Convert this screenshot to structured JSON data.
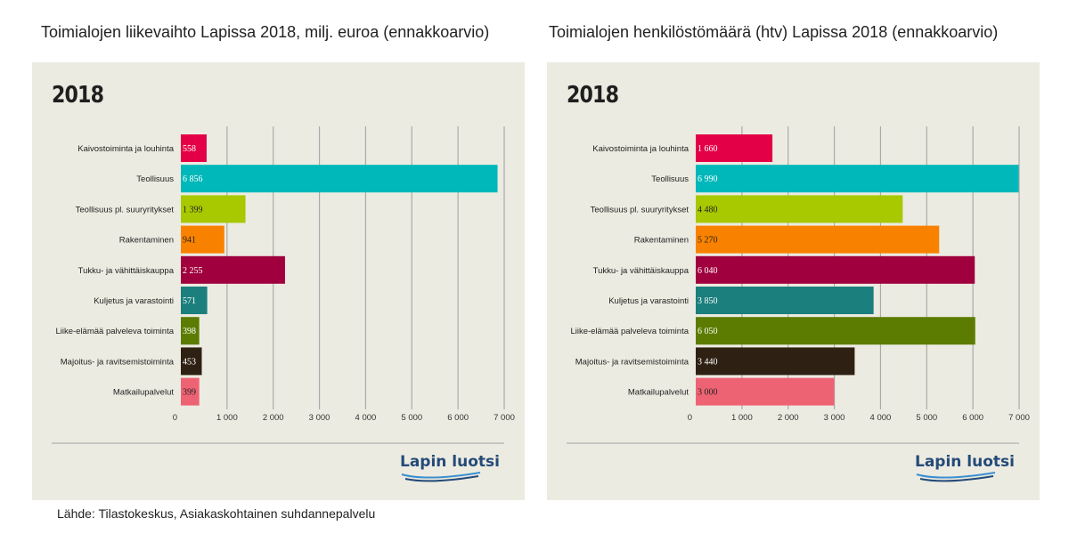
{
  "footer": "Lähde: Tilastokeskus, Asiakaskohtainen suhdannepalvelu",
  "logo": "Lapin luotsi",
  "chart_data": [
    {
      "type": "bar",
      "orientation": "horizontal",
      "title": "Toimialojen liikevaihto Lapissa 2018, milj. euroa (ennakkoarvio)",
      "year_label": "2018",
      "categories": [
        "Kaivostoiminta ja louhinta",
        "Teollisuus",
        "Teollisuus pl. suuryritykset",
        "Rakentaminen",
        "Tukku- ja vähittäiskauppa",
        "Kuljetus ja varastointi",
        "Liike-elämää palveleva toiminta",
        "Majoitus- ja ravitsemistoiminta",
        "Matkailupalvelut"
      ],
      "values": [
        558,
        6856,
        1399,
        941,
        2255,
        571,
        398,
        453,
        399
      ],
      "value_labels": [
        "558",
        "6 856",
        "1 399",
        "941",
        "2 255",
        "571",
        "398",
        "453",
        "399"
      ],
      "colors": [
        "#e40046",
        "#00b7b9",
        "#a8c800",
        "#f88200",
        "#a0003e",
        "#1b7f7d",
        "#5b7c00",
        "#2e2113",
        "#ee6374"
      ],
      "dark_label": [
        false,
        false,
        true,
        true,
        false,
        false,
        false,
        false,
        true
      ],
      "xlim": [
        0,
        7000
      ],
      "xticks": [
        0,
        1000,
        2000,
        3000,
        4000,
        5000,
        6000,
        7000
      ],
      "xtick_labels": [
        "0",
        "1 000",
        "2 000",
        "3 000",
        "4 000",
        "5 000",
        "6 000",
        "7 000"
      ]
    },
    {
      "type": "bar",
      "orientation": "horizontal",
      "title": "Toimialojen henkilöstömäärä (htv) Lapissa 2018 (ennakkoarvio)",
      "year_label": "2018",
      "categories": [
        "Kaivostoiminta ja louhinta",
        "Teollisuus",
        "Teollisuus pl. suuryritykset",
        "Rakentaminen",
        "Tukku- ja vähittäiskauppa",
        "Kuljetus ja varastointi",
        "Liike-elämää palveleva toiminta",
        "Majoitus- ja ravitsemistoiminta",
        "Matkailupalvelut"
      ],
      "values": [
        1660,
        6990,
        4480,
        5270,
        6040,
        3850,
        6050,
        3440,
        3000
      ],
      "value_labels": [
        "1 660",
        "6 990",
        "4 480",
        "5 270",
        "6 040",
        "3 850",
        "6 050",
        "3 440",
        "3 000"
      ],
      "colors": [
        "#e40046",
        "#00b7b9",
        "#a8c800",
        "#f88200",
        "#a0003e",
        "#1b7f7d",
        "#5b7c00",
        "#2e2113",
        "#ee6374"
      ],
      "dark_label": [
        false,
        false,
        true,
        true,
        false,
        false,
        false,
        false,
        true
      ],
      "xlim": [
        0,
        7000
      ],
      "xticks": [
        0,
        1000,
        2000,
        3000,
        4000,
        5000,
        6000,
        7000
      ],
      "xtick_labels": [
        "0",
        "1 000",
        "2 000",
        "3 000",
        "4 000",
        "5 000",
        "6 000",
        "7 000"
      ]
    }
  ]
}
